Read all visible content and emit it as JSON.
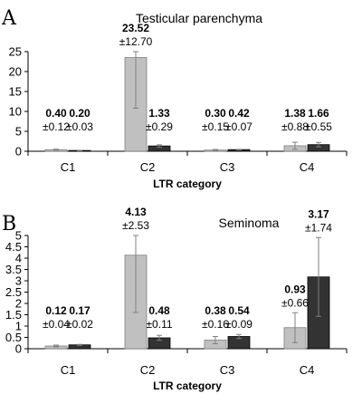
{
  "chart_data": [
    {
      "type": "bar",
      "panel": "A",
      "title": "Testicular parenchyma",
      "xlabel": "LTR category",
      "ylabel": "",
      "categories": [
        "C1",
        "C2",
        "C3",
        "C4"
      ],
      "ylim": [
        0,
        25
      ],
      "yticks": [
        0,
        5,
        10,
        15,
        20,
        25
      ],
      "series": [
        {
          "values": [
            0.4,
            23.52,
            0.3,
            1.38
          ],
          "errors": [
            0.12,
            12.7,
            0.15,
            0.88
          ],
          "value_labels": [
            "0.40",
            "23.52",
            "0.30",
            "1.38"
          ],
          "error_labels": [
            "±0.12",
            "±12.70",
            "±0.15",
            "±0.88"
          ]
        },
        {
          "values": [
            0.2,
            1.33,
            0.42,
            1.66
          ],
          "errors": [
            0.03,
            0.29,
            0.07,
            0.55
          ],
          "value_labels": [
            "0.20",
            "1.33",
            "0.42",
            "1.66"
          ],
          "error_labels": [
            "±0.03",
            "±0.29",
            "±0.07",
            "±0.55"
          ]
        }
      ],
      "colors": [
        "#c0c0c0",
        "#333333"
      ]
    },
    {
      "type": "bar",
      "panel": "B",
      "title": "Seminoma",
      "xlabel": "LTR category",
      "ylabel": "",
      "categories": [
        "C1",
        "C2",
        "C3",
        "C4"
      ],
      "ylim": [
        0,
        5
      ],
      "yticks": [
        0,
        0.5,
        1,
        1.5,
        2,
        2.5,
        3,
        3.5,
        4,
        4.5,
        5
      ],
      "series": [
        {
          "values": [
            0.12,
            4.13,
            0.38,
            0.93
          ],
          "errors": [
            0.04,
            2.53,
            0.16,
            0.66
          ],
          "value_labels": [
            "0.12",
            "4.13",
            "0.38",
            "0.93"
          ],
          "error_labels": [
            "±0.04",
            "±2.53",
            "±0.16",
            "±0.66"
          ]
        },
        {
          "values": [
            0.17,
            0.48,
            0.54,
            3.17
          ],
          "errors": [
            0.02,
            0.11,
            0.09,
            1.74
          ],
          "value_labels": [
            "0.17",
            "0.48",
            "0.54",
            "3.17"
          ],
          "error_labels": [
            "±0.02",
            "±0.11",
            "±0.09",
            "±1.74"
          ]
        }
      ],
      "colors": [
        "#c0c0c0",
        "#333333"
      ]
    }
  ]
}
